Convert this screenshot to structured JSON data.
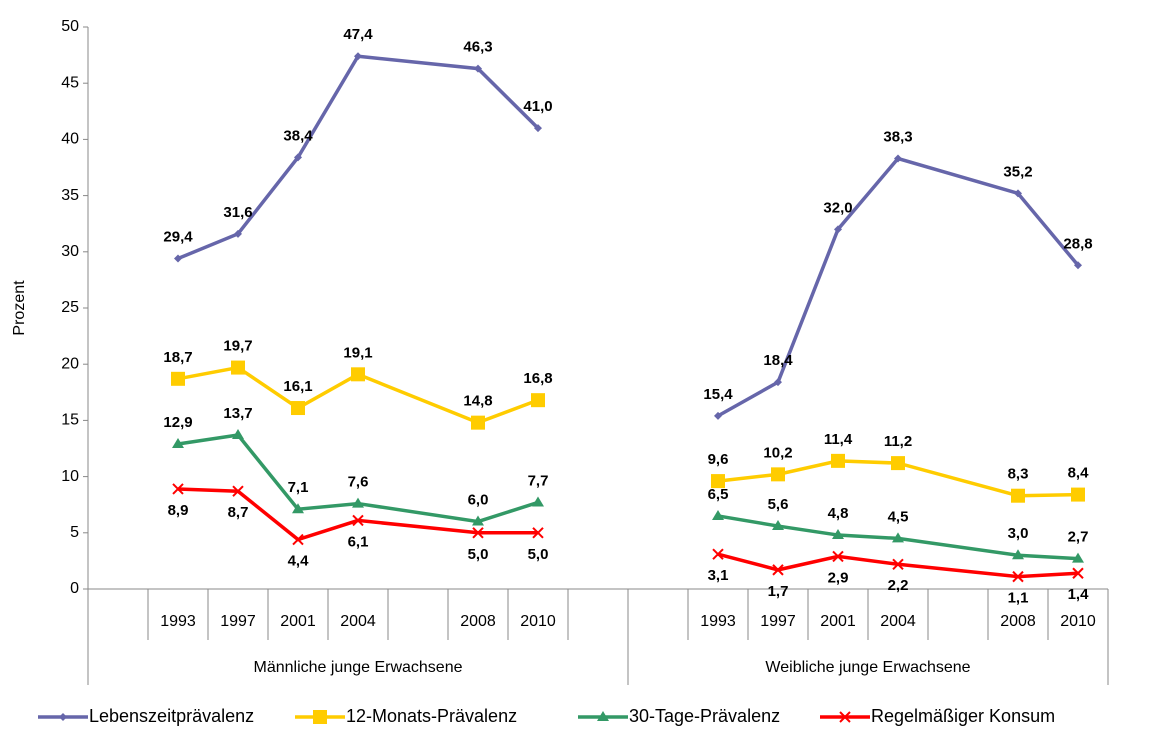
{
  "chart_data": {
    "type": "line",
    "y_label": "Prozent",
    "groups": [
      {
        "name": "Männliche junge Erwachsene",
        "categories": [
          "1993",
          "1997",
          "2001",
          "2004",
          "2008",
          "2010"
        ]
      },
      {
        "name": "Weibliche junge Erwachsene",
        "categories": [
          "1993",
          "1997",
          "2001",
          "2004",
          "2008",
          "2010"
        ]
      }
    ],
    "series": [
      {
        "name": "Lebenszeitprävalenz",
        "color": "#6666aa",
        "marker": "diamond",
        "label_position": "above",
        "values": [
          29.4,
          31.6,
          38.4,
          47.4,
          46.3,
          41.0,
          15.4,
          18.4,
          32.0,
          38.3,
          35.2,
          28.8
        ],
        "value_labels": [
          "29,4",
          "31,6",
          "38,4",
          "47,4",
          "46,3",
          "41,0",
          "15,4",
          "18,4",
          "32,0",
          "38,3",
          "35,2",
          "28,8"
        ]
      },
      {
        "name": "12-Monats-Prävalenz",
        "color": "#ffcc00",
        "marker": "square",
        "label_position": "above",
        "values": [
          18.7,
          19.7,
          16.1,
          19.1,
          14.8,
          16.8,
          9.6,
          10.2,
          11.4,
          11.2,
          8.3,
          8.4
        ],
        "value_labels": [
          "18,7",
          "19,7",
          "16,1",
          "19,1",
          "14,8",
          "16,8",
          "9,6",
          "10,2",
          "11,4",
          "11,2",
          "8,3",
          "8,4"
        ]
      },
      {
        "name": "30-Tage-Prävalenz",
        "color": "#339966",
        "marker": "triangle",
        "label_position": "above",
        "values": [
          12.9,
          13.7,
          7.1,
          7.6,
          6.0,
          7.7,
          6.5,
          5.6,
          4.8,
          4.5,
          3.0,
          2.7
        ],
        "value_labels": [
          "12,9",
          "13,7",
          "7,1",
          "7,6",
          "6,0",
          "7,7",
          "6,5",
          "5,6",
          "4,8",
          "4,5",
          "3,0",
          "2,7"
        ]
      },
      {
        "name": "Regelmäßiger Konsum",
        "color": "#ff0000",
        "marker": "x",
        "label_position": "below",
        "values": [
          8.9,
          8.7,
          4.4,
          6.1,
          5.0,
          5.0,
          3.1,
          1.7,
          2.9,
          2.2,
          1.1,
          1.4
        ],
        "value_labels": [
          "8,9",
          "8,7",
          "4,4",
          "6,1",
          "5,0",
          "5,0",
          "3,1",
          "1,7",
          "2,9",
          "2,2",
          "1,1",
          "1,4"
        ]
      }
    ],
    "ylim": [
      0,
      50
    ],
    "yticks": [
      0,
      5,
      10,
      15,
      20,
      25,
      30,
      35,
      40,
      45,
      50
    ],
    "grid": false,
    "legend": "bottom"
  }
}
